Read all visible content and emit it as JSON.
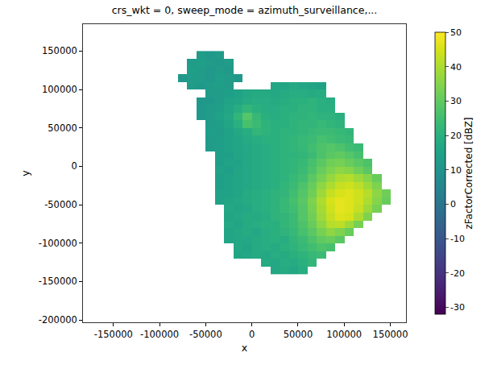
{
  "chart_data": {
    "type": "heatmap",
    "title": "crs_wkt = 0, sweep_mode = azimuth_surveillance,...",
    "x_label": "x",
    "y_label": "y",
    "color": "viridis",
    "xlim": [
      -183000,
      167000
    ],
    "ylim": [
      -203000,
      185000
    ],
    "xticks": [
      -150000,
      -100000,
      -50000,
      0,
      50000,
      100000,
      150000
    ],
    "yticks": [
      -200000,
      -150000,
      -100000,
      -50000,
      0,
      50000,
      100000,
      150000
    ],
    "x": [
      -75000,
      -65000,
      -55000,
      -45000,
      -35000,
      -25000,
      -15000,
      -5000,
      5000,
      15000,
      25000,
      35000,
      45000,
      55000,
      65000,
      75000,
      85000,
      95000,
      105000,
      115000,
      125000,
      135000,
      145000
    ],
    "y": [
      -135000,
      -125000,
      -115000,
      -105000,
      -95000,
      -85000,
      -75000,
      -65000,
      -55000,
      -45000,
      -35000,
      -25000,
      -15000,
      -5000,
      5000,
      15000,
      25000,
      35000,
      45000,
      55000,
      65000,
      75000,
      85000,
      95000,
      105000,
      115000,
      125000,
      135000,
      145000
    ],
    "z": [
      [
        null,
        null,
        null,
        null,
        null,
        null,
        null,
        null,
        null,
        null,
        17,
        18,
        17,
        19,
        null,
        null,
        null,
        null,
        null,
        null,
        null,
        null,
        null
      ],
      [
        null,
        null,
        null,
        null,
        null,
        null,
        null,
        null,
        null,
        18,
        17,
        19,
        18,
        20,
        22,
        null,
        null,
        null,
        null,
        null,
        null,
        null,
        null
      ],
      [
        null,
        null,
        null,
        null,
        null,
        null,
        16,
        17,
        18,
        17,
        19,
        18,
        20,
        21,
        23,
        24,
        null,
        null,
        null,
        null,
        null,
        null,
        null
      ],
      [
        null,
        null,
        null,
        null,
        null,
        null,
        17,
        16,
        18,
        19,
        18,
        20,
        21,
        23,
        25,
        27,
        26,
        null,
        null,
        null,
        null,
        null,
        null
      ],
      [
        null,
        null,
        null,
        null,
        null,
        16,
        17,
        17,
        18,
        19,
        20,
        19,
        22,
        24,
        27,
        30,
        31,
        29,
        null,
        null,
        null,
        null,
        null
      ],
      [
        null,
        null,
        null,
        null,
        null,
        16,
        17,
        18,
        17,
        19,
        20,
        21,
        23,
        26,
        29,
        33,
        36,
        34,
        31,
        null,
        null,
        null,
        null
      ],
      [
        null,
        null,
        null,
        null,
        null,
        17,
        16,
        18,
        19,
        20,
        20,
        22,
        24,
        27,
        31,
        36,
        41,
        42,
        38,
        33,
        null,
        null,
        null
      ],
      [
        null,
        null,
        null,
        null,
        null,
        16,
        17,
        18,
        18,
        19,
        21,
        22,
        24,
        28,
        32,
        38,
        43,
        46,
        45,
        40,
        34,
        null,
        null
      ],
      [
        null,
        null,
        null,
        null,
        null,
        17,
        16,
        17,
        19,
        20,
        21,
        23,
        25,
        28,
        33,
        39,
        44,
        47,
        46,
        43,
        38,
        33,
        null
      ],
      [
        null,
        null,
        null,
        null,
        15,
        16,
        17,
        18,
        19,
        20,
        21,
        23,
        26,
        29,
        34,
        40,
        45,
        47,
        46,
        44,
        40,
        35,
        31
      ],
      [
        null,
        null,
        null,
        null,
        15,
        15,
        16,
        18,
        19,
        20,
        21,
        22,
        25,
        28,
        32,
        38,
        43,
        45,
        46,
        44,
        41,
        36,
        32
      ],
      [
        null,
        null,
        null,
        null,
        14,
        15,
        16,
        17,
        18,
        19,
        20,
        22,
        24,
        27,
        31,
        36,
        40,
        43,
        44,
        42,
        38,
        34,
        null
      ],
      [
        null,
        null,
        null,
        null,
        14,
        15,
        16,
        17,
        18,
        19,
        20,
        21,
        23,
        25,
        29,
        33,
        37,
        40,
        41,
        38,
        35,
        31,
        null
      ],
      [
        null,
        null,
        null,
        null,
        15,
        14,
        16,
        17,
        18,
        19,
        20,
        21,
        22,
        24,
        27,
        31,
        34,
        36,
        35,
        32,
        29,
        null,
        null
      ],
      [
        null,
        null,
        null,
        null,
        14,
        15,
        15,
        17,
        18,
        19,
        20,
        21,
        22,
        23,
        26,
        29,
        32,
        33,
        31,
        29,
        27,
        null,
        null
      ],
      [
        null,
        null,
        null,
        null,
        14,
        14,
        16,
        17,
        18,
        19,
        20,
        21,
        21,
        22,
        24,
        27,
        29,
        30,
        28,
        26,
        null,
        null,
        null
      ],
      [
        null,
        null,
        null,
        13,
        14,
        15,
        16,
        17,
        18,
        19,
        20,
        21,
        22,
        23,
        25,
        27,
        28,
        27,
        25,
        24,
        null,
        null,
        null
      ],
      [
        null,
        null,
        null,
        13,
        14,
        15,
        16,
        18,
        19,
        20,
        20,
        21,
        22,
        23,
        24,
        26,
        25,
        24,
        23,
        null,
        null,
        null,
        null
      ],
      [
        null,
        null,
        null,
        14,
        13,
        15,
        17,
        19,
        22,
        21,
        20,
        21,
        21,
        22,
        23,
        24,
        24,
        23,
        22,
        null,
        null,
        null,
        null
      ],
      [
        null,
        null,
        null,
        13,
        14,
        16,
        20,
        26,
        24,
        21,
        20,
        20,
        21,
        22,
        22,
        23,
        22,
        21,
        null,
        null,
        null,
        null,
        null
      ],
      [
        null,
        null,
        12,
        13,
        15,
        17,
        22,
        28,
        23,
        20,
        19,
        20,
        21,
        21,
        22,
        21,
        21,
        20,
        null,
        null,
        null,
        null,
        null
      ],
      [
        null,
        null,
        12,
        13,
        14,
        16,
        19,
        22,
        20,
        19,
        19,
        20,
        20,
        21,
        21,
        20,
        20,
        null,
        null,
        null,
        null,
        null,
        null
      ],
      [
        null,
        null,
        12,
        12,
        13,
        15,
        16,
        18,
        19,
        19,
        18,
        19,
        20,
        20,
        21,
        20,
        19,
        null,
        null,
        null,
        null,
        null,
        null
      ],
      [
        null,
        null,
        null,
        13,
        13,
        14,
        15,
        17,
        18,
        18,
        17,
        18,
        19,
        19,
        18,
        19,
        null,
        null,
        null,
        null,
        null,
        null,
        null
      ],
      [
        null,
        13,
        12,
        13,
        14,
        13,
        null,
        null,
        null,
        null,
        17,
        16,
        18,
        17,
        16,
        15,
        null,
        null,
        null,
        null,
        null,
        null,
        null
      ],
      [
        12,
        13,
        13,
        12,
        14,
        13,
        12,
        null,
        null,
        null,
        null,
        null,
        null,
        null,
        null,
        null,
        null,
        null,
        null,
        null,
        null,
        null,
        null
      ],
      [
        null,
        14,
        13,
        12,
        13,
        12,
        null,
        null,
        null,
        null,
        null,
        null,
        null,
        null,
        null,
        null,
        null,
        null,
        null,
        null,
        null,
        null,
        null
      ],
      [
        null,
        13,
        14,
        13,
        12,
        13,
        null,
        null,
        null,
        null,
        null,
        null,
        null,
        null,
        null,
        null,
        null,
        null,
        null,
        null,
        null,
        null,
        null
      ],
      [
        null,
        null,
        13,
        12,
        13,
        null,
        null,
        null,
        null,
        null,
        null,
        null,
        null,
        null,
        null,
        null,
        null,
        null,
        null,
        null,
        null,
        null,
        null
      ]
    ],
    "colorbar": {
      "title": "zFactorCorrected [dBZ]",
      "range": [
        -32,
        50
      ],
      "ticks": [
        -30,
        -20,
        -10,
        0,
        10,
        20,
        30,
        40,
        50
      ]
    }
  }
}
